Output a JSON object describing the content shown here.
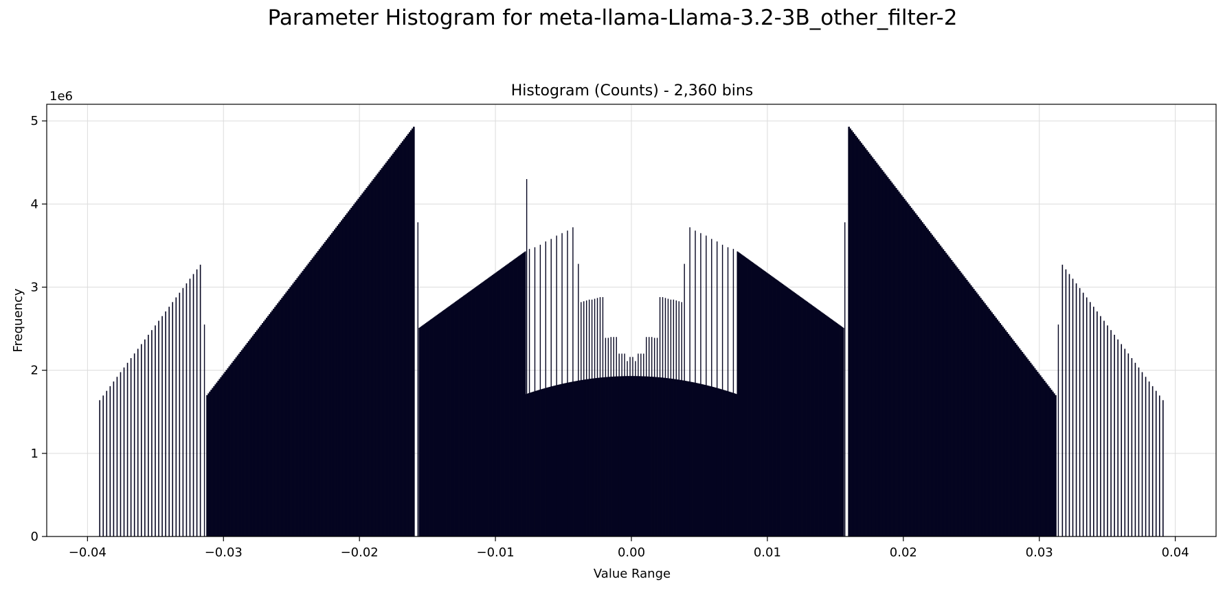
{
  "suptitle": "Parameter Histogram for meta-llama-Llama-3.2-3B_other_filter-2",
  "chart_data": {
    "type": "bar",
    "title": "Histogram (Counts) - 2,360 bins",
    "xlabel": "Value Range",
    "ylabel": "Frequency",
    "y_offset_text": "1e6",
    "xlim": [
      -0.043,
      0.043
    ],
    "ylim": [
      0,
      5.2
    ],
    "y_unit": 1000000,
    "grid": true,
    "bar_color": "#050520",
    "x_ticks": [
      -0.04,
      -0.03,
      -0.02,
      -0.01,
      0.0,
      0.01,
      0.02,
      0.03,
      0.04
    ],
    "x_tick_labels": [
      "−0.04",
      "−0.03",
      "−0.02",
      "−0.01",
      "0.00",
      "0.01",
      "0.02",
      "0.03",
      "0.04"
    ],
    "y_ticks": [
      0,
      1,
      2,
      3,
      4,
      5
    ],
    "y_tick_labels": [
      "0",
      "1",
      "2",
      "3",
      "4",
      "5"
    ],
    "segments": [
      {
        "x_start": -0.0391,
        "x_end": -0.0317,
        "y_start": 1.64,
        "y_end": 3.27,
        "bars": 30
      },
      {
        "x_start": -0.0312,
        "x_end": -0.016,
        "y_start": 1.7,
        "y_end": 4.93,
        "bars": 150
      },
      {
        "x_start": -0.0156,
        "x_end": -0.0078,
        "y_start": 2.51,
        "y_end": 3.43,
        "bars": 130
      },
      {
        "x_start": -0.0078,
        "x_end": 0.0078,
        "y_start": 1.71,
        "y_end": 1.71,
        "y_peak": 1.93,
        "bars": 300
      },
      {
        "x_start": 0.0078,
        "x_end": 0.0156,
        "y_start": 3.43,
        "y_end": 2.51,
        "bars": 130
      },
      {
        "x_start": 0.016,
        "x_end": 0.0312,
        "y_start": 4.93,
        "y_end": 1.7,
        "bars": 150
      },
      {
        "x_start": 0.0317,
        "x_end": 0.0391,
        "y_start": 3.27,
        "y_end": 1.64,
        "bars": 30
      }
    ],
    "tall_bars": [
      {
        "x": -0.0314,
        "y": 2.55
      },
      {
        "x": -0.0157,
        "y": 3.78
      },
      {
        "x": -0.0077,
        "y": 4.3
      },
      {
        "x": -0.0075,
        "y": 3.46
      },
      {
        "x": -0.0071,
        "y": 3.48
      },
      {
        "x": -0.0067,
        "y": 3.51
      },
      {
        "x": -0.0063,
        "y": 3.55
      },
      {
        "x": -0.0059,
        "y": 3.58
      },
      {
        "x": -0.0055,
        "y": 3.62
      },
      {
        "x": -0.0051,
        "y": 3.65
      },
      {
        "x": -0.0047,
        "y": 3.68
      },
      {
        "x": -0.0043,
        "y": 3.72
      },
      {
        "x": -0.0039,
        "y": 3.28
      },
      {
        "x": -0.0037,
        "y": 2.82
      },
      {
        "x": -0.0035,
        "y": 2.83
      },
      {
        "x": -0.0033,
        "y": 2.84
      },
      {
        "x": -0.0031,
        "y": 2.85
      },
      {
        "x": -0.0029,
        "y": 2.85
      },
      {
        "x": -0.0027,
        "y": 2.86
      },
      {
        "x": -0.0025,
        "y": 2.87
      },
      {
        "x": -0.0023,
        "y": 2.88
      },
      {
        "x": -0.0021,
        "y": 2.88
      },
      {
        "x": -0.0019,
        "y": 2.39
      },
      {
        "x": -0.0017,
        "y": 2.39
      },
      {
        "x": -0.0015,
        "y": 2.4
      },
      {
        "x": -0.0013,
        "y": 2.4
      },
      {
        "x": -0.0011,
        "y": 2.4
      },
      {
        "x": -0.0009,
        "y": 2.2
      },
      {
        "x": -0.0007,
        "y": 2.2
      },
      {
        "x": -0.0005,
        "y": 2.2
      },
      {
        "x": -0.0003,
        "y": 2.11
      },
      {
        "x": -0.0001,
        "y": 2.16
      },
      {
        "x": 0.0001,
        "y": 2.16
      },
      {
        "x": 0.0003,
        "y": 2.11
      },
      {
        "x": 0.0005,
        "y": 2.2
      },
      {
        "x": 0.0007,
        "y": 2.2
      },
      {
        "x": 0.0009,
        "y": 2.2
      },
      {
        "x": 0.0011,
        "y": 2.4
      },
      {
        "x": 0.0013,
        "y": 2.4
      },
      {
        "x": 0.0015,
        "y": 2.4
      },
      {
        "x": 0.0017,
        "y": 2.39
      },
      {
        "x": 0.0019,
        "y": 2.39
      },
      {
        "x": 0.0021,
        "y": 2.88
      },
      {
        "x": 0.0023,
        "y": 2.88
      },
      {
        "x": 0.0025,
        "y": 2.87
      },
      {
        "x": 0.0027,
        "y": 2.86
      },
      {
        "x": 0.0029,
        "y": 2.85
      },
      {
        "x": 0.0031,
        "y": 2.85
      },
      {
        "x": 0.0033,
        "y": 2.84
      },
      {
        "x": 0.0035,
        "y": 2.83
      },
      {
        "x": 0.0037,
        "y": 2.82
      },
      {
        "x": 0.0039,
        "y": 3.28
      },
      {
        "x": 0.0043,
        "y": 3.72
      },
      {
        "x": 0.0047,
        "y": 3.68
      },
      {
        "x": 0.0051,
        "y": 3.65
      },
      {
        "x": 0.0055,
        "y": 3.62
      },
      {
        "x": 0.0059,
        "y": 3.58
      },
      {
        "x": 0.0063,
        "y": 3.55
      },
      {
        "x": 0.0067,
        "y": 3.51
      },
      {
        "x": 0.0071,
        "y": 3.48
      },
      {
        "x": 0.0075,
        "y": 3.46
      },
      {
        "x": 0.0157,
        "y": 3.78
      },
      {
        "x": 0.0314,
        "y": 2.55
      }
    ]
  }
}
